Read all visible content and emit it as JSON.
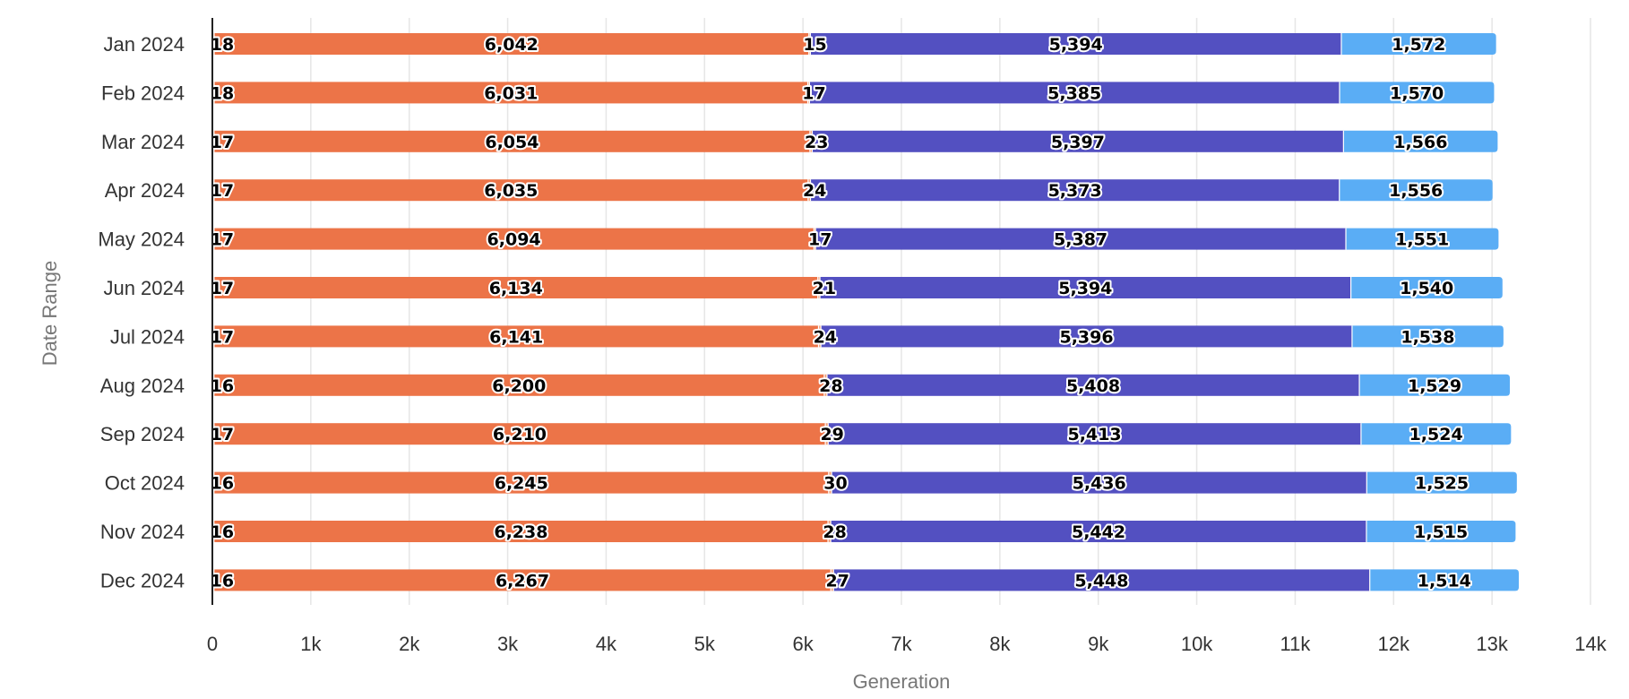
{
  "chart_data": {
    "type": "bar",
    "orientation": "horizontal",
    "stacked": true,
    "categories": [
      "Jan 2024",
      "Feb 2024",
      "Mar 2024",
      "Apr 2024",
      "May 2024",
      "Jun 2024",
      "Jul 2024",
      "Aug 2024",
      "Sep 2024",
      "Oct 2024",
      "Nov 2024",
      "Dec 2024"
    ],
    "series": [
      {
        "color": "#f7c6a8",
        "values": [
          18,
          18,
          17,
          17,
          17,
          17,
          17,
          16,
          17,
          16,
          16,
          16
        ]
      },
      {
        "color": "#ec7448",
        "values": [
          6042,
          6031,
          6054,
          6035,
          6094,
          6134,
          6141,
          6200,
          6210,
          6245,
          6238,
          6267
        ]
      },
      {
        "color": "#f2a07a",
        "values": [
          15,
          17,
          23,
          24,
          17,
          21,
          24,
          28,
          29,
          30,
          28,
          27
        ]
      },
      {
        "color": "#5350c1",
        "values": [
          5394,
          5385,
          5397,
          5373,
          5387,
          5394,
          5396,
          5408,
          5413,
          5436,
          5442,
          5448
        ]
      },
      {
        "color": "#5aadf5",
        "values": [
          1572,
          1570,
          1566,
          1556,
          1551,
          1540,
          1538,
          1529,
          1524,
          1525,
          1515,
          1514
        ]
      }
    ],
    "data_label_text": [
      [
        "18",
        "18",
        "17",
        "17",
        "17",
        "17",
        "17",
        "16",
        "17",
        "16",
        "16",
        "16"
      ],
      [
        "6,042",
        "6,031",
        "6,054",
        "6,035",
        "6,094",
        "6,134",
        "6,141",
        "6,200",
        "6,210",
        "6,245",
        "6,238",
        "6,267"
      ],
      [
        "15",
        "17",
        "23",
        "24",
        "17",
        "21",
        "24",
        "28",
        "29",
        "30",
        "28",
        "27"
      ],
      [
        "5,394",
        "5,385",
        "5,397",
        "5,373",
        "5,387",
        "5,394",
        "5,396",
        "5,408",
        "5,413",
        "5,436",
        "5,442",
        "5,448"
      ],
      [
        "1,572",
        "1,570",
        "1,566",
        "1,556",
        "1,551",
        "1,540",
        "1,538",
        "1,529",
        "1,524",
        "1,525",
        "1,515",
        "1,514"
      ]
    ],
    "xlabel": "Generation",
    "ylabel": "Date Range",
    "xlim": [
      0,
      14000
    ],
    "x_ticks": [
      0,
      1000,
      2000,
      3000,
      4000,
      5000,
      6000,
      7000,
      8000,
      9000,
      10000,
      11000,
      12000,
      13000,
      14000
    ],
    "x_tick_labels": [
      "0",
      "1k",
      "2k",
      "3k",
      "4k",
      "5k",
      "6k",
      "7k",
      "8k",
      "9k",
      "10k",
      "11k",
      "12k",
      "13k",
      "14k"
    ],
    "grid": "vertical",
    "legend": "none"
  }
}
